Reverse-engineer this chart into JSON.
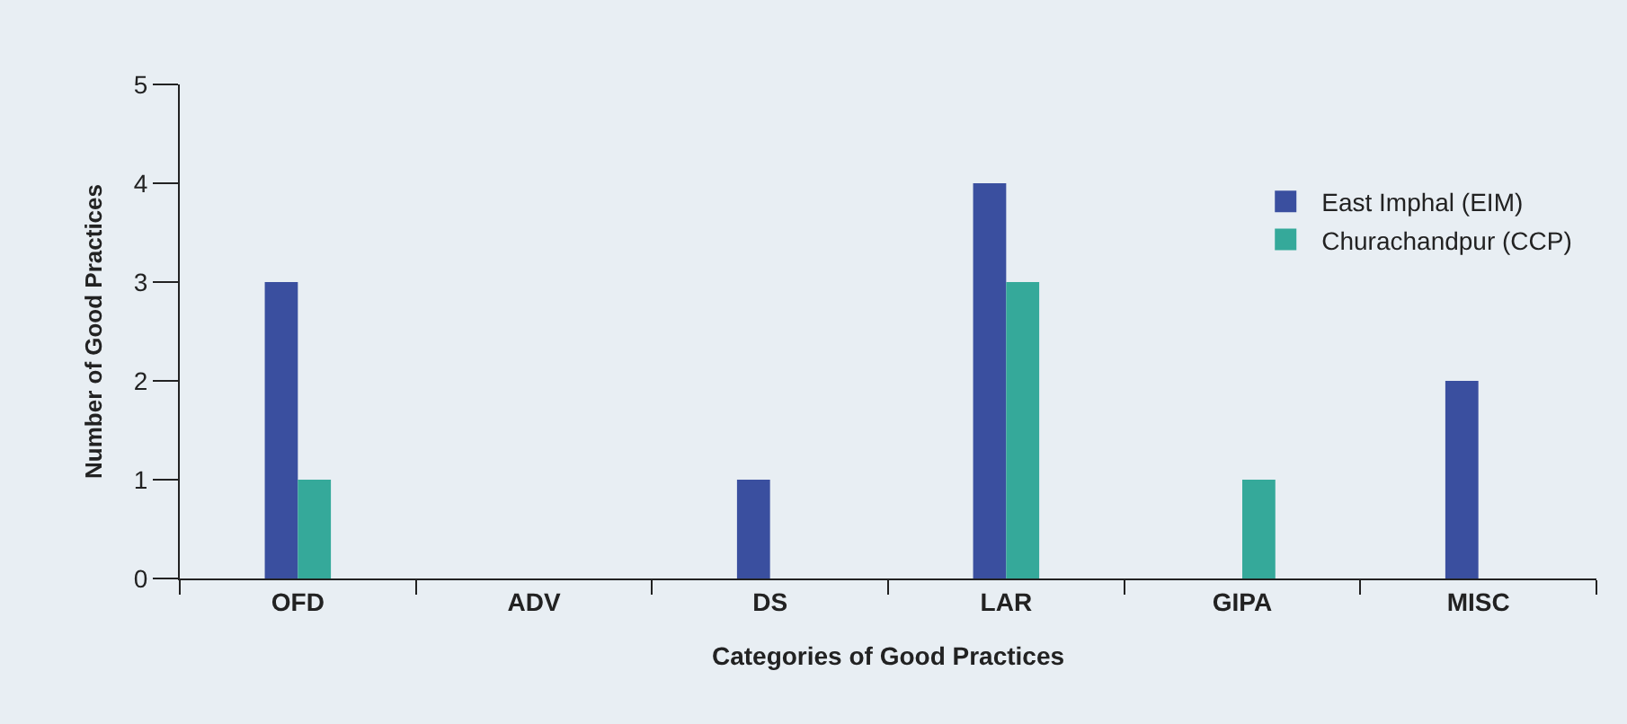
{
  "chart_data": {
    "type": "bar",
    "xlabel": "Categories of Good Practices",
    "ylabel": "Number of Good Practices",
    "categories": [
      "OFD",
      "ADV",
      "DS",
      "LAR",
      "GIPA",
      "MISC"
    ],
    "series": [
      {
        "name": "East Imphal (EIM)",
        "color": "#3a4f9f",
        "values": [
          3,
          0,
          1,
          4,
          0,
          2
        ]
      },
      {
        "name": "Churachandpur (CCP)",
        "color": "#35a99a",
        "values": [
          1,
          0,
          0,
          3,
          1,
          0
        ]
      }
    ],
    "ylim": [
      0,
      5
    ],
    "yticks": [
      0,
      1,
      2,
      3,
      4,
      5
    ],
    "grid": false,
    "legend": "top right"
  }
}
